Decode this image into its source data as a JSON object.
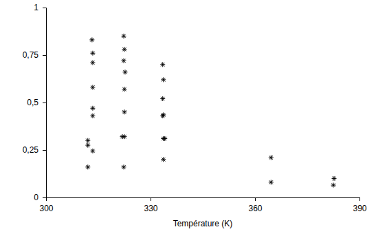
{
  "chart_data": {
    "type": "scatter",
    "x_label": "Température (K)",
    "x": [
      313.2,
      313.4,
      313.4,
      313.4,
      313.4,
      313.4,
      312.0,
      312.0,
      313.4,
      312.0,
      322.3,
      322.5,
      322.3,
      322.7,
      322.5,
      322.5,
      321.9,
      322.5,
      322.3,
      333.5,
      333.7,
      333.5,
      333.7,
      333.5,
      333.7,
      334.1,
      333.7,
      364.6,
      364.6,
      382.7,
      382.5
    ],
    "y": [
      0.83,
      0.76,
      0.71,
      0.58,
      0.47,
      0.43,
      0.3,
      0.275,
      0.245,
      0.16,
      0.85,
      0.78,
      0.72,
      0.66,
      0.57,
      0.45,
      0.32,
      0.32,
      0.16,
      0.7,
      0.62,
      0.52,
      0.435,
      0.43,
      0.31,
      0.31,
      0.2,
      0.21,
      0.08,
      0.1,
      0.065
    ],
    "color": "#000000",
    "marker": "asterisk",
    "grid": false,
    "xlim": [
      300,
      390
    ],
    "xticks": [
      300,
      330,
      360,
      390
    ],
    "ylim": [
      0,
      1
    ],
    "yticks": [
      0,
      {
        "value": 0.25,
        "label": "0,25"
      },
      {
        "value": 0.5,
        "label": "0,5"
      },
      {
        "value": 0.75,
        "label": "0,75"
      },
      1
    ]
  }
}
